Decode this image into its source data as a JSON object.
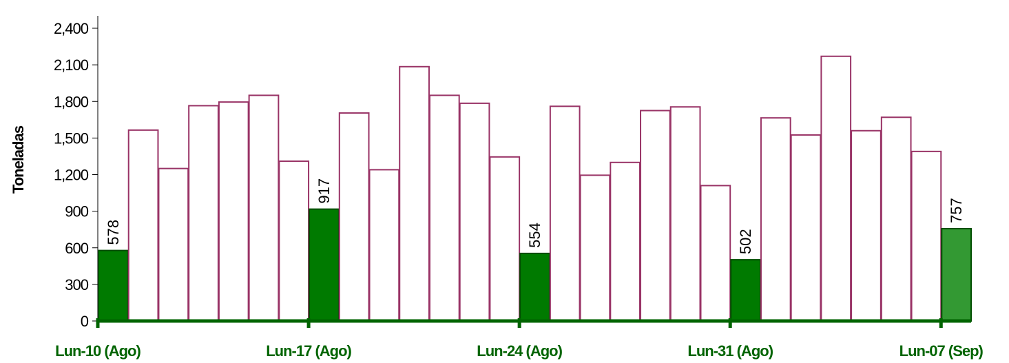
{
  "chart_data": {
    "type": "bar",
    "title": "",
    "xlabel": "",
    "ylabel": "Toneladas",
    "ylim": [
      0,
      2400
    ],
    "yticks": [
      "0",
      "300",
      "600",
      "900",
      "1,200",
      "1,500",
      "1,800",
      "2,100",
      "2,400"
    ],
    "ytick_values": [
      0,
      300,
      600,
      900,
      1200,
      1500,
      1800,
      2100,
      2400
    ],
    "grid": false,
    "legend": "none",
    "x_tick_labels": [
      {
        "index": 0,
        "label": "Lun-10 (Ago)"
      },
      {
        "index": 7,
        "label": "Lun-17 (Ago)"
      },
      {
        "index": 14,
        "label": "Lun-24 (Ago)"
      },
      {
        "index": 21,
        "label": "Lun-31 (Ago)"
      },
      {
        "index": 28,
        "label": "Lun-07 (Sep)"
      }
    ],
    "values": [
      578,
      1565,
      1250,
      1765,
      1795,
      1850,
      1310,
      917,
      1705,
      1240,
      2085,
      1850,
      1785,
      1345,
      554,
      1760,
      1195,
      1300,
      1725,
      1755,
      1110,
      502,
      1665,
      1525,
      2170,
      1560,
      1670,
      1390,
      757
    ],
    "data_labels": [
      {
        "index": 0,
        "text": "578"
      },
      {
        "index": 7,
        "text": "917"
      },
      {
        "index": 14,
        "text": "554"
      },
      {
        "index": 21,
        "text": "502"
      },
      {
        "index": 28,
        "text": "757"
      }
    ],
    "colors": {
      "monday_fill": "#007a00",
      "last_fill": "#339933",
      "other_fill": "#ffffff",
      "other_stroke": "#993366",
      "monday_stroke": "#004d00",
      "axis": "#006400",
      "tick_label": "#000000",
      "x_label": "#006400"
    }
  }
}
